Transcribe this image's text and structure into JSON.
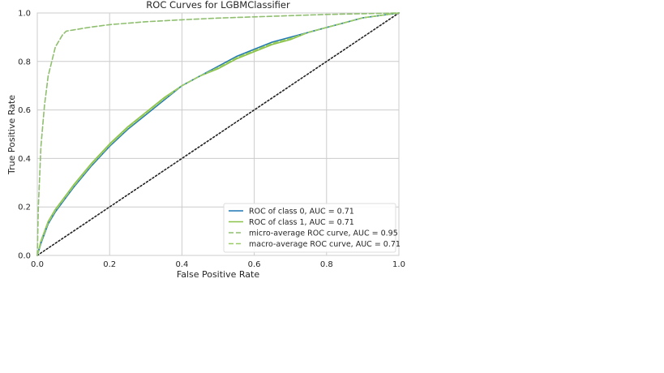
{
  "chart_data": {
    "type": "line",
    "title": "ROC Curves for LGBMClassifier",
    "xlabel": "False Positive Rate",
    "ylabel": "True Positive Rate",
    "xlim": [
      0,
      1
    ],
    "ylim": [
      0,
      1
    ],
    "xticks": [
      "0.0",
      "0.2",
      "0.4",
      "0.6",
      "0.8",
      "1.0"
    ],
    "yticks": [
      "0.0",
      "0.2",
      "0.4",
      "0.6",
      "0.8",
      "1.0"
    ],
    "grid": true,
    "legend_position": "lower-right",
    "series": [
      {
        "name": "ROC of class 0, AUC = 0.71",
        "color": "#1f77b4",
        "style": "solid",
        "x": [
          0,
          0.01,
          0.03,
          0.05,
          0.08,
          0.1,
          0.15,
          0.2,
          0.25,
          0.3,
          0.35,
          0.4,
          0.45,
          0.5,
          0.55,
          0.6,
          0.65,
          0.7,
          0.75,
          0.8,
          0.85,
          0.9,
          0.95,
          1.0
        ],
        "y": [
          0,
          0.05,
          0.13,
          0.18,
          0.24,
          0.28,
          0.37,
          0.45,
          0.52,
          0.58,
          0.64,
          0.7,
          0.74,
          0.78,
          0.82,
          0.85,
          0.88,
          0.9,
          0.92,
          0.94,
          0.96,
          0.98,
          0.99,
          1.0
        ]
      },
      {
        "name": "ROC of class 1, AUC = 0.71",
        "color": "#8bc34a",
        "style": "solid",
        "x": [
          0,
          0.01,
          0.03,
          0.05,
          0.08,
          0.1,
          0.15,
          0.2,
          0.25,
          0.3,
          0.35,
          0.4,
          0.45,
          0.5,
          0.55,
          0.6,
          0.65,
          0.7,
          0.75,
          0.8,
          0.85,
          0.9,
          0.95,
          1.0
        ],
        "y": [
          0,
          0.06,
          0.14,
          0.19,
          0.25,
          0.29,
          0.38,
          0.46,
          0.53,
          0.59,
          0.65,
          0.7,
          0.74,
          0.77,
          0.81,
          0.84,
          0.87,
          0.89,
          0.92,
          0.94,
          0.96,
          0.98,
          0.99,
          1.0
        ]
      },
      {
        "name": "micro-average ROC curve, AUC = 0.95",
        "color": "#8fbf6f",
        "style": "dashed",
        "x": [
          0,
          0.003,
          0.01,
          0.02,
          0.03,
          0.05,
          0.07,
          0.08,
          0.1,
          0.15,
          0.2,
          0.3,
          0.4,
          0.5,
          0.6,
          0.7,
          0.8,
          0.9,
          1.0
        ],
        "y": [
          0,
          0.2,
          0.45,
          0.62,
          0.74,
          0.86,
          0.91,
          0.925,
          0.93,
          0.942,
          0.952,
          0.964,
          0.972,
          0.979,
          0.984,
          0.989,
          0.994,
          0.997,
          1.0
        ]
      },
      {
        "name": "macro-average ROC curve, AUC = 0.71",
        "color": "#9ccc65",
        "style": "dashed",
        "x": [
          0,
          0.01,
          0.03,
          0.05,
          0.08,
          0.1,
          0.15,
          0.2,
          0.25,
          0.3,
          0.35,
          0.4,
          0.45,
          0.5,
          0.55,
          0.6,
          0.65,
          0.7,
          0.75,
          0.8,
          0.85,
          0.9,
          0.95,
          1.0
        ],
        "y": [
          0,
          0.055,
          0.135,
          0.185,
          0.245,
          0.285,
          0.375,
          0.455,
          0.525,
          0.585,
          0.645,
          0.7,
          0.74,
          0.775,
          0.815,
          0.845,
          0.875,
          0.895,
          0.92,
          0.94,
          0.96,
          0.98,
          0.99,
          1.0
        ]
      },
      {
        "name": "",
        "color": "#222222",
        "style": "dotted",
        "x": [
          0,
          1
        ],
        "y": [
          0,
          1
        ]
      }
    ]
  }
}
